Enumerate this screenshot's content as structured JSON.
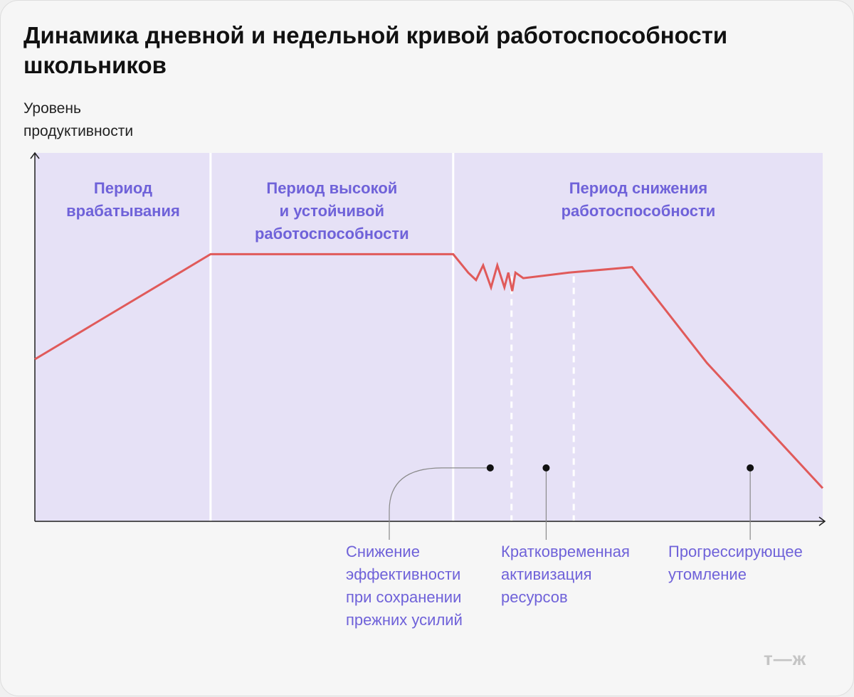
{
  "chart_data": {
    "type": "line",
    "title": "Динамика дневной и недельной кривой работоспособности школьников",
    "ylabel": "Уровень\nпродуктивности",
    "xlabel": "",
    "periods": [
      {
        "label": "Период\nврабатывания"
      },
      {
        "label": "Период высокой\nи устойчивой\nработоспособности"
      },
      {
        "label": "Период снижения\nработоспособности"
      }
    ],
    "phases": [
      {
        "label": "Снижение\nэффективности\nпри сохранении\nпрежних усилий"
      },
      {
        "label": "Кратковременная\nактивизация\nресурсов"
      },
      {
        "label": "Прогрессирующее\nутомление"
      }
    ],
    "series": [
      {
        "color": "#e05a5a",
        "x": [
          0,
          22.3,
          53.1,
          55.0,
          56.0,
          56.9,
          57.9,
          58.7,
          59.6,
          60.1,
          60.6,
          61.0,
          62.0,
          67.8,
          75.8,
          85.3,
          100
        ],
        "y": [
          44.0,
          72.5,
          72.5,
          67.5,
          65.5,
          69.5,
          63.5,
          69.5,
          63.5,
          67.5,
          62.5,
          67.5,
          66.0,
          67.5,
          69.0,
          43.0,
          9.0
        ]
      }
    ],
    "xlim": [
      0,
      100
    ],
    "ylim": [
      0,
      100
    ],
    "colors": {
      "band": "#e6e1f6",
      "line": "#e05a5a",
      "accent": "#6f62d9",
      "axis": "#1f1f1f",
      "divider": "#ffffff"
    },
    "grid": false,
    "legend": "none"
  },
  "brand": {
    "logo": "т—ж"
  }
}
